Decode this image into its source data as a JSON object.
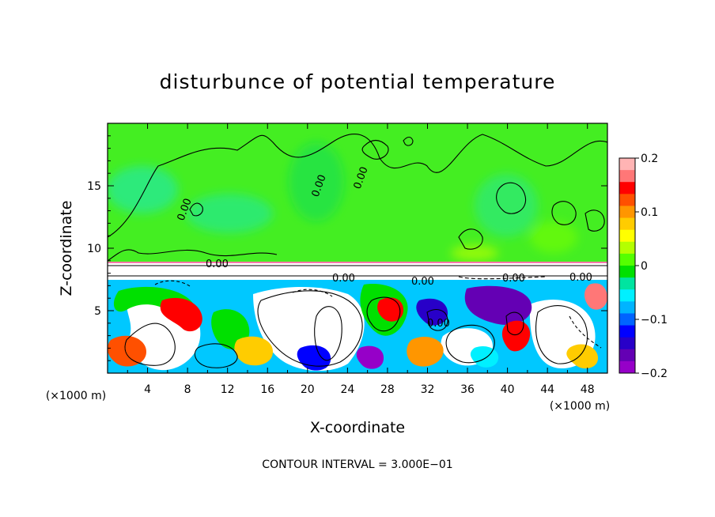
{
  "chart_data": {
    "type": "heatmap",
    "title": "disturbunce of potential temperature",
    "xlabel": "X-coordinate",
    "ylabel": "Z-coordinate",
    "x_unit_left": "(×1000 m)",
    "x_unit_right": "(×1000 m)",
    "xlim": [
      0,
      50
    ],
    "ylim": [
      0,
      20
    ],
    "xticks": [
      4,
      8,
      12,
      16,
      20,
      24,
      28,
      32,
      36,
      40,
      44,
      48
    ],
    "yticks": [
      5,
      10,
      15
    ],
    "colorbar": {
      "range": [
        -0.2,
        0.2
      ],
      "ticks": [
        "0.2",
        "0.1",
        "0",
        "−0.1",
        "−0.2"
      ],
      "tick_values": [
        0.2,
        0.1,
        0,
        -0.1,
        -0.2
      ],
      "colors": [
        "#ffb4b4",
        "#ff7777",
        "#ff0000",
        "#ff5000",
        "#ff9600",
        "#ffcc00",
        "#ffff00",
        "#b4ff00",
        "#55ff00",
        "#00e000",
        "#00e4a0",
        "#00f0ff",
        "#00b4ff",
        "#0064ff",
        "#0000ff",
        "#2800c8",
        "#6400b4",
        "#9600c8"
      ]
    },
    "contour_labels": [
      "0.00",
      "0.00",
      "0.00",
      "0.00",
      "0.00",
      "0.00",
      "0.00",
      "0.00",
      "0.00"
    ],
    "footer": "CONTOUR INTERVAL = 3.000E−01"
  }
}
